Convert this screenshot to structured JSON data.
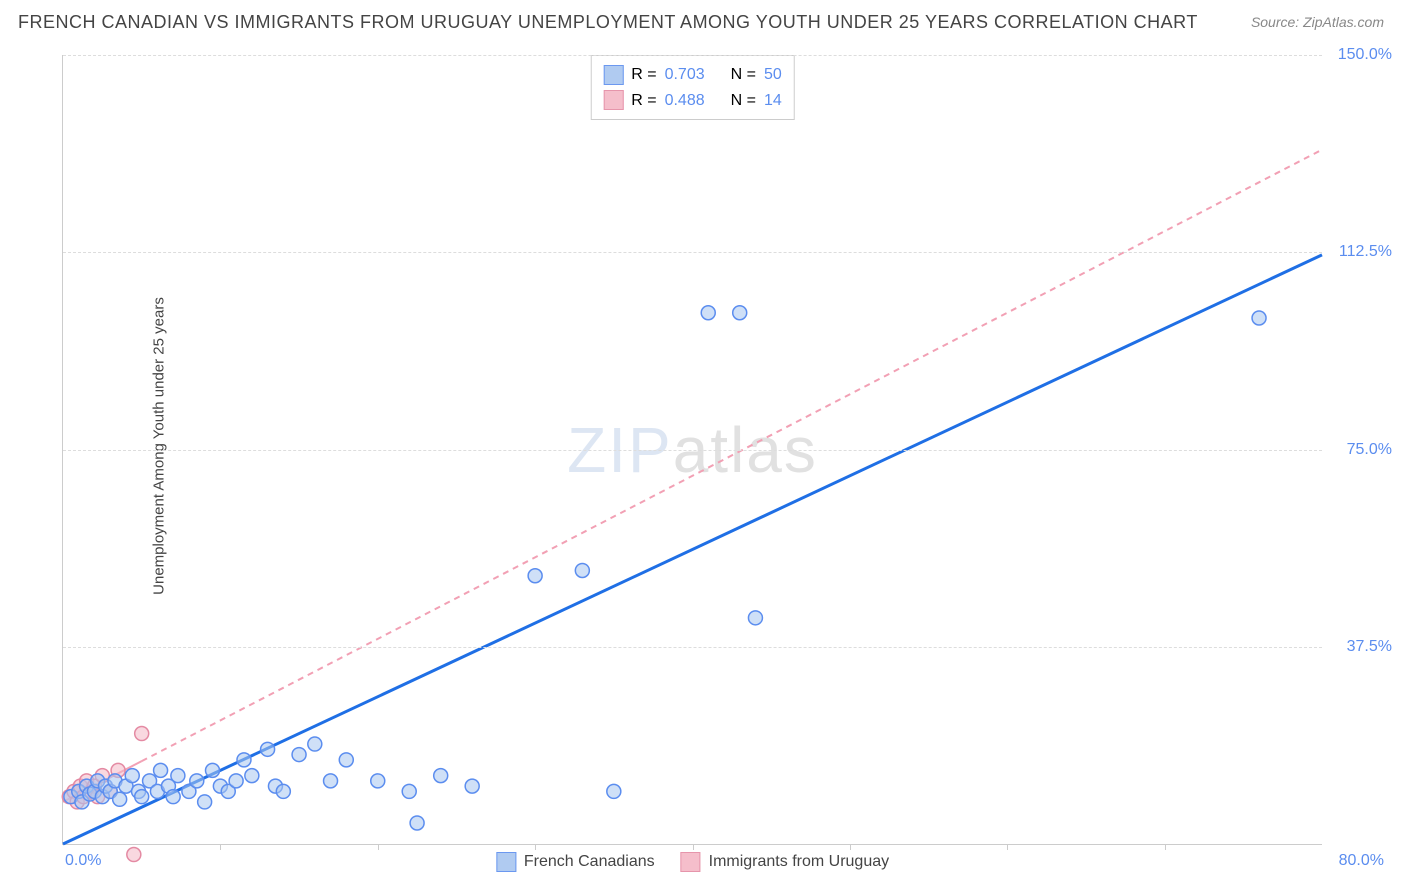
{
  "title": "FRENCH CANADIAN VS IMMIGRANTS FROM URUGUAY UNEMPLOYMENT AMONG YOUTH UNDER 25 YEARS CORRELATION CHART",
  "source": "Source: ZipAtlas.com",
  "ylabel": "Unemployment Among Youth under 25 years",
  "watermark_a": "ZIP",
  "watermark_b": "atlas",
  "chart": {
    "type": "scatter",
    "xlim": [
      0,
      80
    ],
    "ylim": [
      0,
      150
    ],
    "x_start_label": "0.0%",
    "x_end_label": "80.0%",
    "y_ticks": [
      37.5,
      75.0,
      112.5,
      150.0
    ],
    "y_tick_labels": [
      "37.5%",
      "75.0%",
      "112.5%",
      "150.0%"
    ],
    "x_minor_ticks": [
      10,
      20,
      30,
      40,
      50,
      60,
      70
    ],
    "background_color": "#ffffff",
    "grid_color": "#dddddd",
    "axis_color": "#cccccc",
    "tick_label_color": "#5b8def",
    "marker_radius": 7,
    "marker_stroke_width": 1.5,
    "series": [
      {
        "name": "French Canadians",
        "fill": "#a8c6f0",
        "stroke": "#5b8def",
        "fill_opacity": 0.55,
        "trend_color": "#1f6fe5",
        "trend_width": 3,
        "trend_dash": "none",
        "trend_p1": [
          0,
          0
        ],
        "trend_p2": [
          80,
          112
        ],
        "R": "0.703",
        "N": "50",
        "points": [
          [
            0.5,
            9
          ],
          [
            1,
            10
          ],
          [
            1.2,
            8
          ],
          [
            1.5,
            11
          ],
          [
            1.7,
            9.5
          ],
          [
            2,
            10
          ],
          [
            2.2,
            12
          ],
          [
            2.5,
            9
          ],
          [
            2.7,
            11
          ],
          [
            3,
            10
          ],
          [
            3.3,
            12
          ],
          [
            3.6,
            8.5
          ],
          [
            4,
            11
          ],
          [
            4.4,
            13
          ],
          [
            4.8,
            10
          ],
          [
            5,
            9
          ],
          [
            5.5,
            12
          ],
          [
            6,
            10
          ],
          [
            6.2,
            14
          ],
          [
            6.7,
            11
          ],
          [
            7,
            9
          ],
          [
            7.3,
            13
          ],
          [
            8,
            10
          ],
          [
            8.5,
            12
          ],
          [
            9,
            8
          ],
          [
            9.5,
            14
          ],
          [
            10,
            11
          ],
          [
            10.5,
            10
          ],
          [
            11,
            12
          ],
          [
            11.5,
            16
          ],
          [
            12,
            13
          ],
          [
            13,
            18
          ],
          [
            13.5,
            11
          ],
          [
            14,
            10
          ],
          [
            15,
            17
          ],
          [
            16,
            19
          ],
          [
            17,
            12
          ],
          [
            18,
            16
          ],
          [
            20,
            12
          ],
          [
            22,
            10
          ],
          [
            22.5,
            4
          ],
          [
            24,
            13
          ],
          [
            26,
            11
          ],
          [
            30,
            51
          ],
          [
            33,
            52
          ],
          [
            41,
            101
          ],
          [
            43,
            101
          ],
          [
            44,
            43
          ],
          [
            35,
            10
          ],
          [
            76,
            100
          ]
        ]
      },
      {
        "name": "Immigrants from Uruguay",
        "fill": "#f4b8c6",
        "stroke": "#e48aa3",
        "fill_opacity": 0.55,
        "trend_color": "#f2a0b4",
        "trend_width": 2,
        "trend_dash": "6,5",
        "trend_p1": [
          0,
          8
        ],
        "trend_p2": [
          80,
          132
        ],
        "trend_solid_until": 5,
        "R": "0.488",
        "N": "14",
        "points": [
          [
            0.4,
            9
          ],
          [
            0.7,
            10
          ],
          [
            0.9,
            8
          ],
          [
            1.1,
            11
          ],
          [
            1.3,
            9
          ],
          [
            1.5,
            12
          ],
          [
            1.8,
            10
          ],
          [
            2,
            11
          ],
          [
            2.2,
            9
          ],
          [
            2.5,
            13
          ],
          [
            3,
            10
          ],
          [
            3.5,
            14
          ],
          [
            4.5,
            -2
          ],
          [
            5,
            21
          ]
        ]
      }
    ]
  },
  "legend_top": {
    "r_label": "R =",
    "n_label": "N ="
  },
  "legend_bottom": {
    "label_a": "French Canadians",
    "label_b": "Immigrants from Uruguay"
  }
}
